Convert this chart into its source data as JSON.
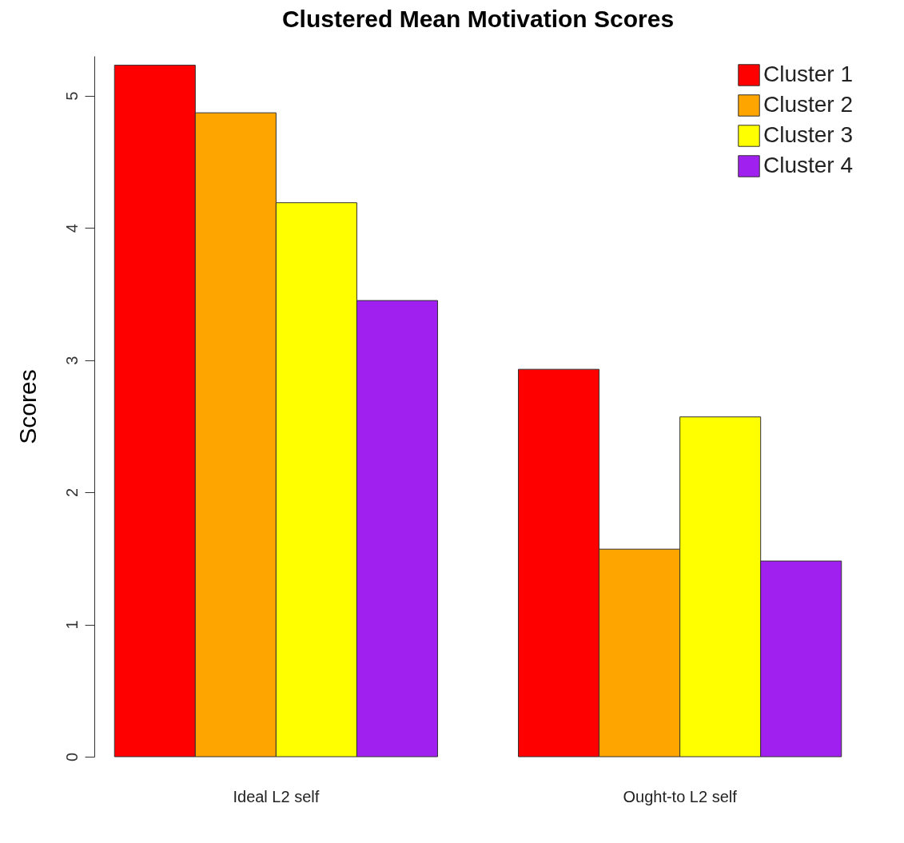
{
  "chart_data": {
    "type": "bar",
    "title": "Clustered Mean Motivation Scores",
    "ylabel": "Scores",
    "categories": [
      "Ideal L2 self",
      "Ought-to L2 self"
    ],
    "series": [
      {
        "name": "Cluster 1",
        "color": "#ff0000",
        "values": [
          5.23,
          2.93
        ]
      },
      {
        "name": "Cluster 2",
        "color": "#ffa500",
        "values": [
          4.87,
          1.57
        ]
      },
      {
        "name": "Cluster 3",
        "color": "#ffff00",
        "values": [
          4.19,
          2.57
        ]
      },
      {
        "name": "Cluster 4",
        "color": "#a020f0",
        "values": [
          3.45,
          1.48
        ]
      }
    ],
    "ylim": [
      0,
      5.3
    ],
    "yticks": [
      0,
      1,
      2,
      3,
      4,
      5
    ],
    "grid": false,
    "legend": "top right"
  }
}
